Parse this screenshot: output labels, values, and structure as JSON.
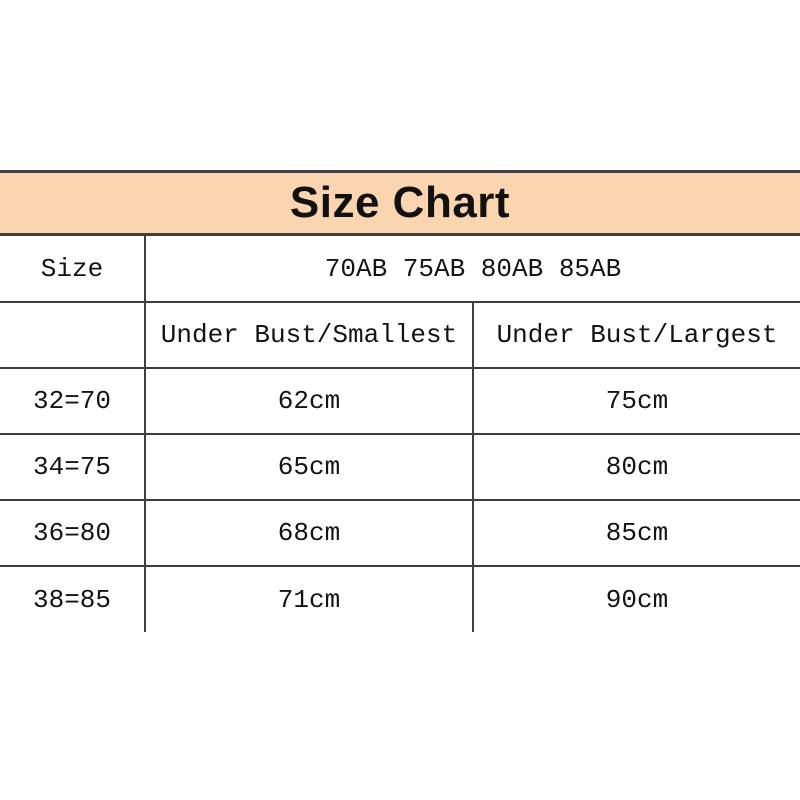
{
  "title": "Size Chart",
  "colors": {
    "banner_bg": "#fbd5af",
    "rule": "#3f3f3f",
    "text": "#141414",
    "page_bg": "#ffffff"
  },
  "table": {
    "size_row": {
      "label": "Size",
      "value": "70AB 75AB 80AB 85AB"
    },
    "header_row": {
      "col1": "",
      "col2": "Under Bust/Smallest",
      "col3": "Under Bust/Largest"
    },
    "rows": [
      {
        "size": "32=70",
        "smallest": "62cm",
        "largest": "75cm"
      },
      {
        "size": "34=75",
        "smallest": "65cm",
        "largest": "80cm"
      },
      {
        "size": "36=80",
        "smallest": "68cm",
        "largest": "85cm"
      },
      {
        "size": "38=85",
        "smallest": "71cm",
        "largest": "90cm"
      }
    ]
  },
  "chart_data": {
    "type": "table",
    "title": "Size Chart",
    "size_group": "70AB 75AB 80AB 85AB",
    "columns": [
      "Size",
      "Under Bust/Smallest",
      "Under Bust/Largest"
    ],
    "rows": [
      [
        "32=70",
        "62cm",
        "75cm"
      ],
      [
        "34=75",
        "65cm",
        "80cm"
      ],
      [
        "36=80",
        "68cm",
        "85cm"
      ],
      [
        "38=85",
        "71cm",
        "90cm"
      ]
    ]
  }
}
